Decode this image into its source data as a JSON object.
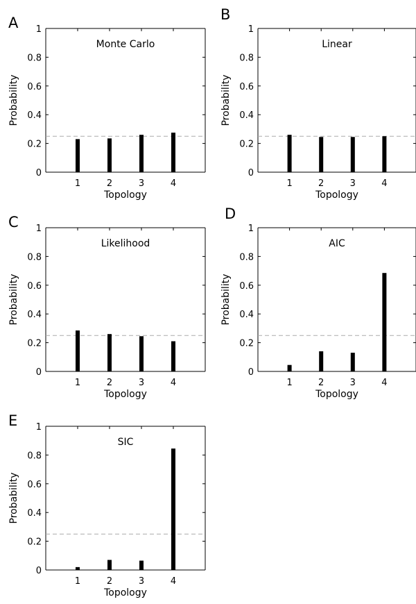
{
  "chart_data": [
    {
      "panel": "A",
      "title": "Monte Carlo",
      "type": "bar",
      "categories": [
        "1",
        "2",
        "3",
        "4"
      ],
      "values": [
        0.23,
        0.235,
        0.26,
        0.275
      ],
      "reference_line": 0.25,
      "xlabel": "Topology",
      "ylabel": "Probability",
      "ylim": [
        0,
        1
      ],
      "yticks": [
        "0",
        "0.2",
        "0.4",
        "0.6",
        "0.8",
        "1"
      ]
    },
    {
      "panel": "B",
      "title": "Linear",
      "type": "bar",
      "categories": [
        "1",
        "2",
        "3",
        "4"
      ],
      "values": [
        0.26,
        0.245,
        0.245,
        0.25
      ],
      "reference_line": 0.25,
      "xlabel": "Topology",
      "ylabel": "Probability",
      "ylim": [
        0,
        1
      ],
      "yticks": [
        "0",
        "0.2",
        "0.4",
        "0.6",
        "0.8",
        "1"
      ]
    },
    {
      "panel": "C",
      "title": "Likelihood",
      "type": "bar",
      "categories": [
        "1",
        "2",
        "3",
        "4"
      ],
      "values": [
        0.285,
        0.26,
        0.245,
        0.21
      ],
      "reference_line": 0.25,
      "xlabel": "Topology",
      "ylabel": "Probability",
      "ylim": [
        0,
        1
      ],
      "yticks": [
        "0",
        "0.2",
        "0.4",
        "0.6",
        "0.8",
        "1"
      ]
    },
    {
      "panel": "D",
      "title": "AIC",
      "type": "bar",
      "categories": [
        "1",
        "2",
        "3",
        "4"
      ],
      "values": [
        0.045,
        0.14,
        0.13,
        0.685
      ],
      "reference_line": 0.25,
      "xlabel": "Topology",
      "ylabel": "Probability",
      "ylim": [
        0,
        1
      ],
      "yticks": [
        "0",
        "0.2",
        "0.4",
        "0.6",
        "0.8",
        "1"
      ]
    },
    {
      "panel": "E",
      "title": "SIC",
      "type": "bar",
      "categories": [
        "1",
        "2",
        "3",
        "4"
      ],
      "values": [
        0.02,
        0.07,
        0.065,
        0.845
      ],
      "reference_line": 0.25,
      "xlabel": "Topology",
      "ylabel": "Probability",
      "ylim": [
        0,
        1
      ],
      "yticks": [
        "0",
        "0.2",
        "0.4",
        "0.6",
        "0.8",
        "1"
      ]
    }
  ],
  "colors": {
    "bar": "#000000",
    "axis": "#000000",
    "reference_line": "#aaaaaa"
  }
}
